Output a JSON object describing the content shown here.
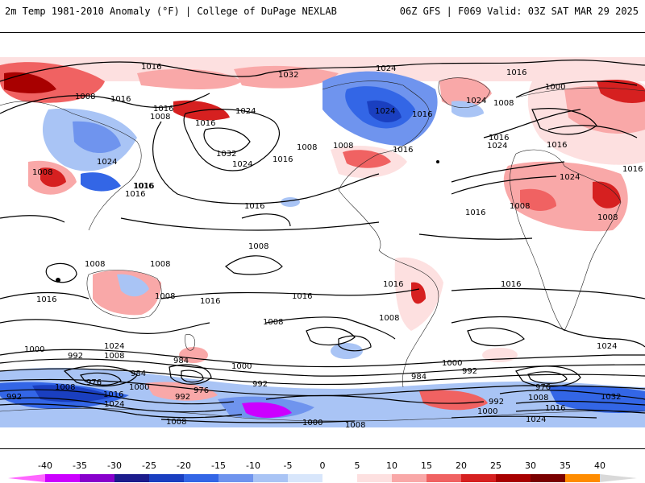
{
  "header": {
    "left_title": "2m Temp 1981-2010 Anomaly (°F) | College of DuPage NEXLAB",
    "right_title": "06Z GFS | F069 Valid: 03Z SAT MAR 29 2025"
  },
  "isobar_labels": [
    {
      "text": "1016"
    },
    {
      "text": "1008"
    },
    {
      "text": "1016"
    },
    {
      "text": "1016"
    },
    {
      "text": "1008"
    },
    {
      "text": "1024"
    },
    {
      "text": "1016"
    },
    {
      "text": "1008"
    },
    {
      "text": "1024"
    },
    {
      "text": "1016"
    },
    {
      "text": "1032"
    },
    {
      "text": "1024"
    },
    {
      "text": "1024"
    },
    {
      "text": "1016"
    },
    {
      "text": "1032"
    },
    {
      "text": "1024"
    },
    {
      "text": "1016"
    },
    {
      "text": "1008"
    },
    {
      "text": "1016"
    },
    {
      "text": "1008"
    },
    {
      "text": "1016"
    },
    {
      "text": "1016"
    },
    {
      "text": "1024"
    },
    {
      "text": "1024"
    },
    {
      "text": "1008"
    },
    {
      "text": "1016"
    },
    {
      "text": "1000"
    },
    {
      "text": "1016"
    },
    {
      "text": "1016"
    },
    {
      "text": "1024"
    },
    {
      "text": "1016"
    },
    {
      "text": "1016"
    },
    {
      "text": "1008"
    },
    {
      "text": "1008"
    },
    {
      "text": "1008"
    },
    {
      "text": "1016"
    },
    {
      "text": "1008"
    },
    {
      "text": "1008"
    },
    {
      "text": "1008"
    },
    {
      "text": "1016"
    },
    {
      "text": "1016"
    },
    {
      "text": "1016"
    },
    {
      "text": "1016"
    },
    {
      "text": "1016"
    },
    {
      "text": "1008"
    },
    {
      "text": "1008"
    },
    {
      "text": "1000"
    },
    {
      "text": "992"
    },
    {
      "text": "1024"
    },
    {
      "text": "1008"
    },
    {
      "text": "984"
    },
    {
      "text": "1000"
    },
    {
      "text": "992"
    },
    {
      "text": "984"
    },
    {
      "text": "976"
    },
    {
      "text": "1000"
    },
    {
      "text": "976"
    },
    {
      "text": "992"
    },
    {
      "text": "1008"
    },
    {
      "text": "1016"
    },
    {
      "text": "1024"
    },
    {
      "text": "992"
    },
    {
      "text": "1008"
    },
    {
      "text": "1000"
    },
    {
      "text": "1008"
    },
    {
      "text": "984"
    },
    {
      "text": "1000"
    },
    {
      "text": "992"
    },
    {
      "text": "976"
    },
    {
      "text": "1008"
    },
    {
      "text": "992"
    },
    {
      "text": "1000"
    },
    {
      "text": "1016"
    },
    {
      "text": "1024"
    },
    {
      "text": "1032"
    },
    {
      "text": "1024"
    }
  ],
  "legend": {
    "ticks": [
      "-40",
      "-35",
      "-30",
      "-25",
      "-20",
      "-15",
      "-10",
      "-5",
      "0",
      "5",
      "10",
      "15",
      "20",
      "25",
      "30",
      "35",
      "40"
    ],
    "colors": [
      "#ff66ff",
      "#cc00ff",
      "#8800cc",
      "#1c1c8c",
      "#1a3fc0",
      "#3366e6",
      "#6f94ee",
      "#a9c4f5",
      "#d8e6fb",
      "#ffffff",
      "#fde0e0",
      "#f9a8a8",
      "#f06262",
      "#d62020",
      "#a80000",
      "#7a0000",
      "#ff8c00",
      "#ffc400",
      "#d9d9d9"
    ]
  }
}
